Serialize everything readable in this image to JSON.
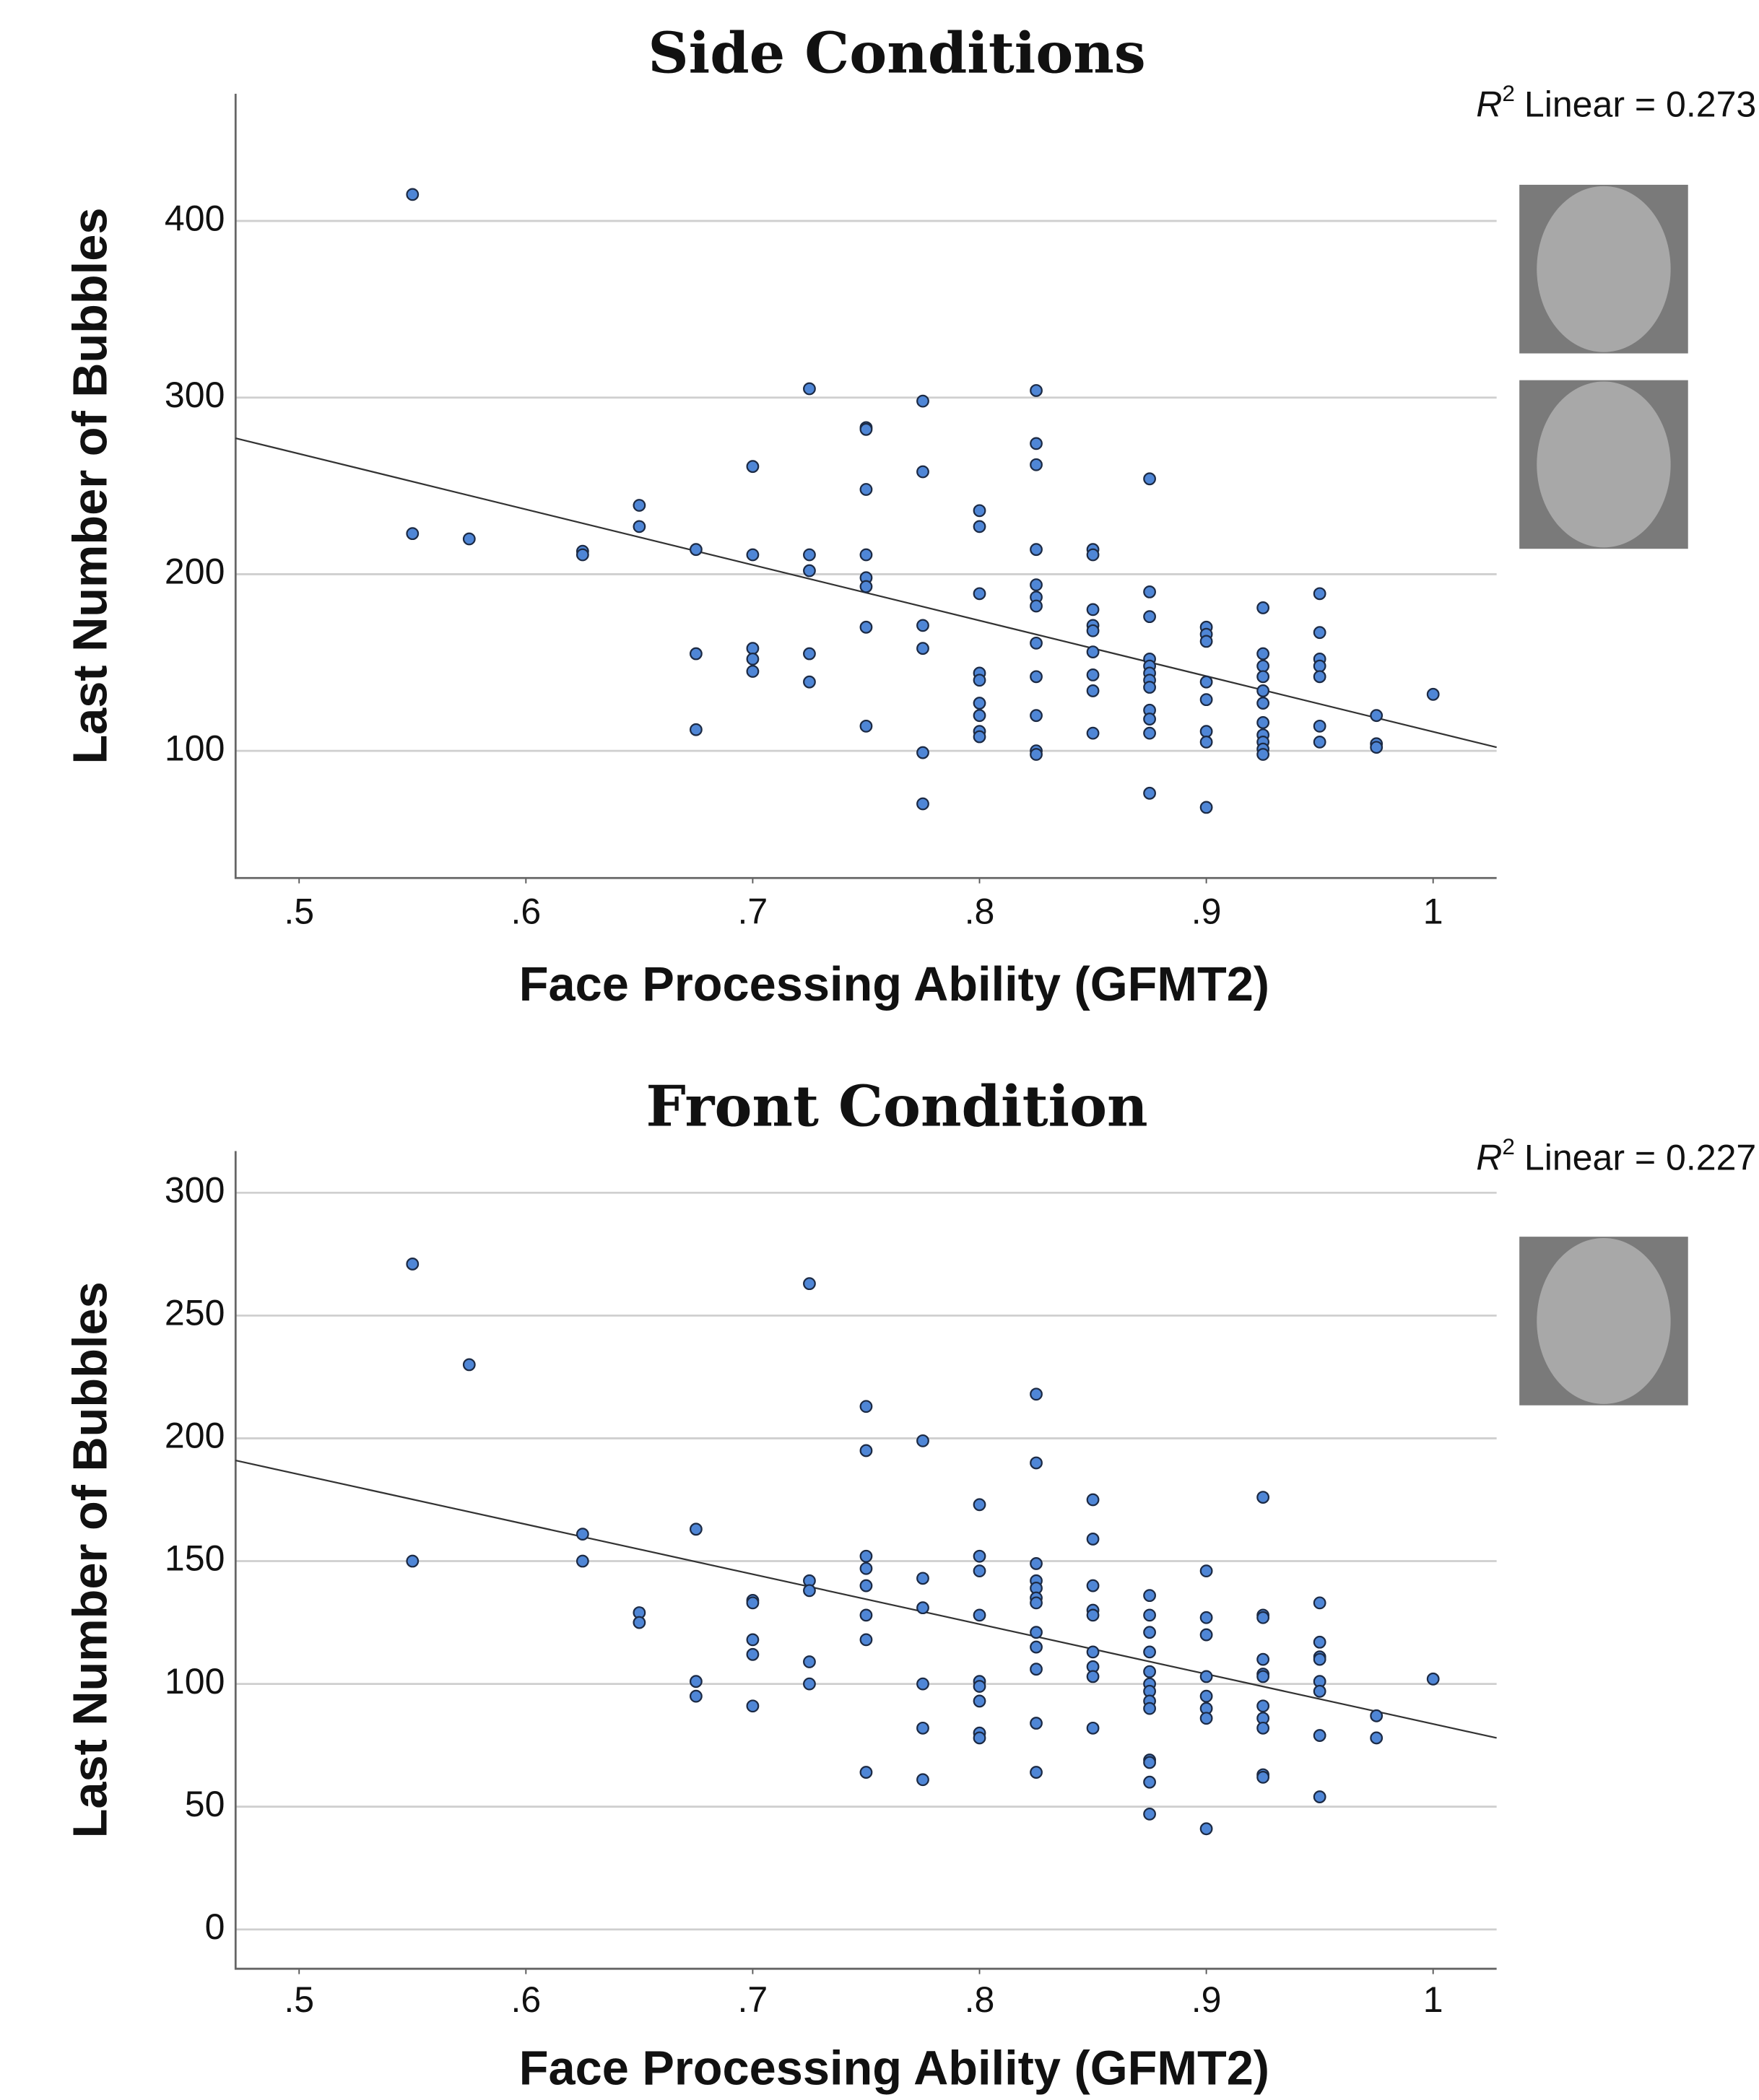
{
  "chart_data": [
    {
      "type": "scatter",
      "title": "Side Conditions",
      "x_label": "Face Processing Ability (GFMT2)",
      "y_label": "Last Number of Bubbles",
      "annotation": {
        "symbol": "R",
        "exponent": "2",
        "text": "Linear = 0.273"
      },
      "color": "#4f86d6",
      "grid": true,
      "xlim": [
        0.472,
        1.028
      ],
      "ylim": [
        28,
        472
      ],
      "xticks": [
        {
          "value": 0.5,
          "label": ".5"
        },
        {
          "value": 0.6,
          "label": ".6"
        },
        {
          "value": 0.7,
          "label": ".7"
        },
        {
          "value": 0.8,
          "label": ".8"
        },
        {
          "value": 0.9,
          "label": ".9"
        },
        1
      ],
      "yticks": [
        100,
        200,
        300,
        400
      ],
      "trendline": {
        "x": [
          0.472,
          1.028
        ],
        "y": [
          277,
          102
        ]
      },
      "x": [
        0.55,
        0.55,
        0.575,
        0.625,
        0.625,
        0.65,
        0.65,
        0.675,
        0.675,
        0.675,
        0.7,
        0.7,
        0.7,
        0.7,
        0.7,
        0.725,
        0.725,
        0.725,
        0.725,
        0.725,
        0.75,
        0.75,
        0.75,
        0.75,
        0.75,
        0.75,
        0.75,
        0.75,
        0.775,
        0.775,
        0.775,
        0.775,
        0.775,
        0.775,
        0.8,
        0.8,
        0.8,
        0.8,
        0.8,
        0.8,
        0.8,
        0.8,
        0.8,
        0.825,
        0.825,
        0.825,
        0.825,
        0.825,
        0.825,
        0.825,
        0.825,
        0.825,
        0.825,
        0.825,
        0.825,
        0.85,
        0.85,
        0.85,
        0.85,
        0.85,
        0.85,
        0.85,
        0.85,
        0.85,
        0.875,
        0.875,
        0.875,
        0.875,
        0.875,
        0.875,
        0.875,
        0.875,
        0.875,
        0.875,
        0.875,
        0.875,
        0.9,
        0.9,
        0.9,
        0.9,
        0.9,
        0.9,
        0.9,
        0.9,
        0.925,
        0.925,
        0.925,
        0.925,
        0.925,
        0.925,
        0.925,
        0.925,
        0.925,
        0.925,
        0.925,
        0.95,
        0.95,
        0.95,
        0.95,
        0.95,
        0.95,
        0.95,
        0.975,
        0.975,
        0.975,
        1.0
      ],
      "values": [
        415,
        223,
        220,
        213,
        211,
        239,
        227,
        214,
        155,
        112,
        261,
        211,
        158,
        152,
        145,
        305,
        211,
        202,
        155,
        139,
        283,
        282,
        248,
        211,
        198,
        193,
        170,
        114,
        298,
        258,
        171,
        158,
        99,
        70,
        236,
        227,
        189,
        144,
        140,
        127,
        120,
        111,
        108,
        304,
        274,
        262,
        214,
        194,
        187,
        182,
        161,
        142,
        120,
        100,
        98,
        214,
        211,
        180,
        171,
        168,
        156,
        143,
        134,
        110,
        254,
        190,
        176,
        152,
        148,
        144,
        140,
        136,
        123,
        118,
        110,
        76,
        170,
        166,
        162,
        139,
        129,
        111,
        105,
        68,
        181,
        155,
        148,
        142,
        134,
        127,
        116,
        109,
        105,
        101,
        98,
        189,
        167,
        152,
        148,
        142,
        114,
        105,
        120,
        104,
        102,
        132
      ]
    },
    {
      "type": "scatter",
      "title": "Front Condition",
      "x_label": "Face Processing Ability (GFMT2)",
      "y_label": "Last Number of Bubbles",
      "annotation": {
        "symbol": "R",
        "exponent": "2",
        "text": "Linear = 0.227"
      },
      "color": "#4f86d6",
      "grid": true,
      "xlim": [
        0.472,
        1.028
      ],
      "ylim": [
        -16,
        317
      ],
      "xticks": [
        {
          "value": 0.5,
          "label": ".5"
        },
        {
          "value": 0.6,
          "label": ".6"
        },
        {
          "value": 0.7,
          "label": ".7"
        },
        {
          "value": 0.8,
          "label": ".8"
        },
        {
          "value": 0.9,
          "label": ".9"
        },
        1
      ],
      "yticks": [
        0,
        50,
        100,
        150,
        200,
        250,
        300
      ],
      "trendline": {
        "x": [
          0.472,
          1.028
        ],
        "y": [
          191,
          78
        ]
      },
      "x": [
        0.55,
        0.55,
        0.575,
        0.625,
        0.625,
        0.65,
        0.65,
        0.675,
        0.675,
        0.675,
        0.7,
        0.7,
        0.7,
        0.7,
        0.7,
        0.725,
        0.725,
        0.725,
        0.725,
        0.725,
        0.75,
        0.75,
        0.75,
        0.75,
        0.75,
        0.75,
        0.75,
        0.75,
        0.775,
        0.775,
        0.775,
        0.775,
        0.775,
        0.775,
        0.8,
        0.8,
        0.8,
        0.8,
        0.8,
        0.8,
        0.8,
        0.8,
        0.8,
        0.825,
        0.825,
        0.825,
        0.825,
        0.825,
        0.825,
        0.825,
        0.825,
        0.825,
        0.825,
        0.825,
        0.825,
        0.85,
        0.85,
        0.85,
        0.85,
        0.85,
        0.85,
        0.85,
        0.85,
        0.85,
        0.875,
        0.875,
        0.875,
        0.875,
        0.875,
        0.875,
        0.875,
        0.875,
        0.875,
        0.875,
        0.875,
        0.875,
        0.875,
        0.9,
        0.9,
        0.9,
        0.9,
        0.9,
        0.9,
        0.9,
        0.9,
        0.925,
        0.925,
        0.925,
        0.925,
        0.925,
        0.925,
        0.925,
        0.925,
        0.925,
        0.925,
        0.925,
        0.95,
        0.95,
        0.95,
        0.95,
        0.95,
        0.95,
        0.95,
        0.95,
        0.975,
        0.975,
        1.0
      ],
      "values": [
        271,
        150,
        230,
        161,
        150,
        129,
        125,
        163,
        101,
        95,
        134,
        133,
        118,
        112,
        91,
        263,
        142,
        138,
        109,
        100,
        213,
        195,
        152,
        147,
        140,
        128,
        118,
        64,
        199,
        143,
        131,
        100,
        82,
        61,
        173,
        152,
        146,
        128,
        101,
        99,
        93,
        80,
        78,
        218,
        190,
        149,
        142,
        139,
        135,
        133,
        121,
        115,
        106,
        84,
        64,
        175,
        159,
        140,
        130,
        128,
        113,
        107,
        103,
        82,
        136,
        128,
        121,
        113,
        105,
        100,
        97,
        93,
        90,
        69,
        68,
        60,
        47,
        146,
        127,
        120,
        103,
        95,
        90,
        86,
        41,
        176,
        128,
        127,
        110,
        104,
        103,
        91,
        86,
        82,
        63,
        62,
        133,
        117,
        111,
        110,
        101,
        97,
        79,
        54,
        87,
        78,
        102
      ]
    }
  ]
}
